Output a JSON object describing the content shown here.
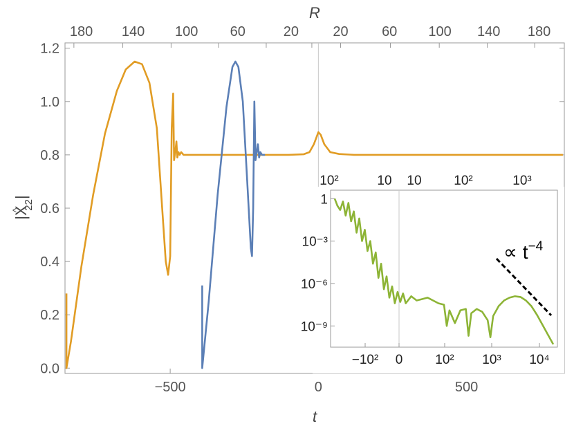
{
  "chart_data": [
    {
      "type": "line",
      "xlabel": "t",
      "ylabel": "|X̂22|",
      "ylabel_main": "|X",
      "ylabel_super": "^",
      "ylabel_sub": "22",
      "ylabel_close": "|",
      "x2label": "R",
      "xlim": [
        -855,
        830
      ],
      "ylim": [
        -0.02,
        1.22
      ],
      "x_ticks": [
        -500,
        0,
        500
      ],
      "x_tick_labels": [
        "−500",
        "0",
        "500"
      ],
      "y_ticks": [
        0.0,
        0.2,
        0.4,
        0.6,
        0.8,
        1.0,
        1.2
      ],
      "y_tick_labels": [
        "0.0",
        "0.2",
        "0.4",
        "0.6",
        "0.8",
        "1.0",
        "1.2"
      ],
      "top_ticks_t": [
        -825,
        -660,
        -497,
        -337,
        -176,
        -22,
        75,
        243,
        408,
        570,
        730
      ],
      "top_tick_labels": [
        "180",
        "140",
        "100",
        "60",
        "20",
        "20",
        "60",
        "100",
        "140",
        "180"
      ],
      "top_tick_labels_t": [
        -800,
        -625,
        -445,
        -272,
        -92,
        75,
        240,
        410,
        575,
        745
      ],
      "vertical_line_t": 0,
      "series": [
        {
          "color": "#e19c24",
          "points": [
            [
              -850,
              0.28
            ],
            [
              -850,
              0.0
            ],
            [
              -835,
              0.1
            ],
            [
              -800,
              0.38
            ],
            [
              -760,
              0.65
            ],
            [
              -720,
              0.88
            ],
            [
              -680,
              1.04
            ],
            [
              -650,
              1.12
            ],
            [
              -620,
              1.15
            ],
            [
              -595,
              1.14
            ],
            [
              -570,
              1.07
            ],
            [
              -545,
              0.9
            ],
            [
              -527,
              0.6
            ],
            [
              -515,
              0.4
            ],
            [
              -507,
              0.35
            ],
            [
              -500,
              0.42
            ],
            [
              -495,
              0.9
            ],
            [
              -490,
              1.03
            ],
            [
              -487,
              0.78
            ],
            [
              -483,
              0.81
            ],
            [
              -479,
              0.85
            ],
            [
              -476,
              0.79
            ],
            [
              -472,
              0.81
            ],
            [
              -468,
              0.8
            ],
            [
              -463,
              0.81
            ],
            [
              -455,
              0.8
            ],
            [
              -400,
              0.8
            ],
            [
              -300,
              0.8
            ],
            [
              -200,
              0.8
            ],
            [
              -100,
              0.8
            ],
            [
              -50,
              0.802
            ],
            [
              -30,
              0.81
            ],
            [
              -15,
              0.84
            ],
            [
              0,
              0.885
            ],
            [
              8,
              0.875
            ],
            [
              20,
              0.84
            ],
            [
              40,
              0.81
            ],
            [
              70,
              0.803
            ],
            [
              120,
              0.8
            ],
            [
              300,
              0.8
            ],
            [
              500,
              0.8
            ],
            [
              825,
              0.8
            ]
          ]
        },
        {
          "color": "#5b7fb6",
          "points": [
            [
              -392,
              0.31
            ],
            [
              -392,
              0.0
            ],
            [
              -370,
              0.25
            ],
            [
              -340,
              0.65
            ],
            [
              -310,
              0.98
            ],
            [
              -290,
              1.13
            ],
            [
              -280,
              1.15
            ],
            [
              -270,
              1.13
            ],
            [
              -255,
              1.0
            ],
            [
              -240,
              0.7
            ],
            [
              -228,
              0.45
            ],
            [
              -224,
              0.42
            ],
            [
              -220,
              0.6
            ],
            [
              -216,
              1.0
            ],
            [
              -212,
              0.78
            ],
            [
              -208,
              0.81
            ],
            [
              -204,
              0.84
            ],
            [
              -200,
              0.79
            ],
            [
              -196,
              0.81
            ],
            [
              -190,
              0.8
            ],
            [
              -180,
              0.8
            ]
          ]
        }
      ]
    },
    {
      "type": "line",
      "scale": "log-y",
      "y_tick_labels": [
        "1",
        "10⁻³",
        "10⁻⁶",
        "10⁻⁹"
      ],
      "y_tick_values_log10": [
        0,
        -3,
        -6,
        -9
      ],
      "ylim_log10": [
        -10.5,
        0.6
      ],
      "bottom_tick_labels": [
        "−10²",
        "0",
        "10²",
        "10³",
        "10⁴"
      ],
      "top_tick_labels": [
        "10²",
        "10",
        "10",
        "10²",
        "10³"
      ],
      "annotation": "∝ t",
      "annotation_exponent": "−4",
      "series": [
        {
          "color": "#8db436",
          "points_log10": [
            [
              0.0,
              0.0
            ],
            [
              0.05,
              -0.5
            ],
            [
              0.1,
              -0.8
            ],
            [
              0.15,
              -0.2
            ],
            [
              0.2,
              -1.2
            ],
            [
              0.25,
              -0.3
            ],
            [
              0.3,
              -1.6
            ],
            [
              0.35,
              -0.9
            ],
            [
              0.4,
              -2.4
            ],
            [
              0.45,
              -1.4
            ],
            [
              0.5,
              -3.0
            ],
            [
              0.55,
              -2.2
            ],
            [
              0.6,
              -3.7
            ],
            [
              0.65,
              -3.0
            ],
            [
              0.7,
              -4.6
            ],
            [
              0.75,
              -3.8
            ],
            [
              0.8,
              -5.6
            ],
            [
              0.85,
              -4.6
            ],
            [
              0.9,
              -6.4
            ],
            [
              0.95,
              -5.5
            ],
            [
              1.0,
              -7.0
            ],
            [
              1.05,
              -6.2
            ],
            [
              1.1,
              -7.4
            ],
            [
              1.15,
              -6.6
            ],
            [
              1.2,
              -7.3
            ],
            [
              1.25,
              -6.7
            ],
            [
              1.3,
              -7.4
            ],
            [
              1.4,
              -6.9
            ],
            [
              1.5,
              -7.2
            ],
            [
              1.6,
              -7.1
            ],
            [
              1.7,
              -7.0
            ],
            [
              1.8,
              -7.2
            ],
            [
              1.9,
              -7.4
            ],
            [
              2.0,
              -7.5
            ],
            [
              2.05,
              -9.0
            ],
            [
              2.1,
              -7.9
            ],
            [
              2.2,
              -8.8
            ],
            [
              2.3,
              -7.9
            ],
            [
              2.4,
              -7.8
            ],
            [
              2.45,
              -9.7
            ],
            [
              2.5,
              -8.1
            ],
            [
              2.6,
              -7.8
            ],
            [
              2.7,
              -8.0
            ],
            [
              2.8,
              -8.6
            ],
            [
              2.85,
              -9.8
            ],
            [
              2.9,
              -8.3
            ],
            [
              3.0,
              -7.6
            ],
            [
              3.1,
              -7.2
            ],
            [
              3.2,
              -7.0
            ],
            [
              3.3,
              -6.9
            ],
            [
              3.4,
              -6.95
            ],
            [
              3.5,
              -7.2
            ],
            [
              3.6,
              -7.6
            ],
            [
              3.7,
              -8.2
            ],
            [
              3.8,
              -8.9
            ],
            [
              3.9,
              -9.6
            ],
            [
              4.0,
              -10.3
            ]
          ]
        }
      ]
    }
  ]
}
